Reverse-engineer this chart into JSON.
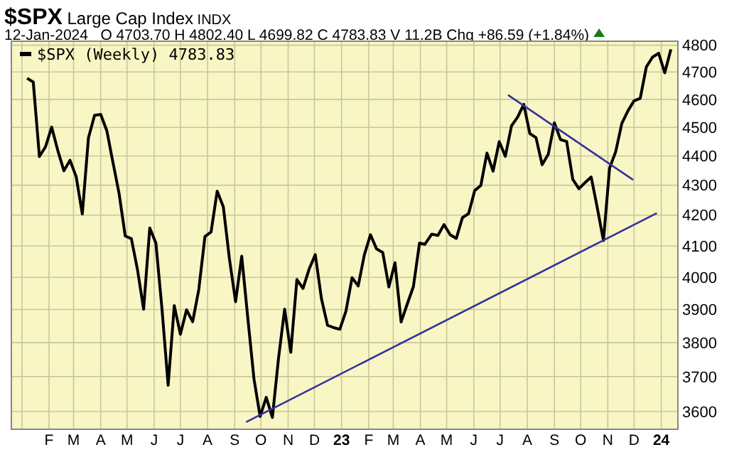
{
  "chart_data": {
    "type": "line",
    "title": "$SPX Large Cap Index INDX",
    "subtitle": "12-Jan-2024   O 4703.70 H 4802.40 L 4699.82 C 4783.83 V 11.2B Chg +86.59 (+1.84%)",
    "x": [
      "2022-01-07",
      "2022-01-14",
      "2022-01-21",
      "2022-01-28",
      "2022-02-04",
      "2022-02-11",
      "2022-02-18",
      "2022-02-25",
      "2022-03-04",
      "2022-03-11",
      "2022-03-18",
      "2022-03-25",
      "2022-04-01",
      "2022-04-08",
      "2022-04-14",
      "2022-04-22",
      "2022-04-29",
      "2022-05-06",
      "2022-05-13",
      "2022-05-20",
      "2022-05-27",
      "2022-06-03",
      "2022-06-10",
      "2022-06-17",
      "2022-06-24",
      "2022-07-01",
      "2022-07-08",
      "2022-07-15",
      "2022-07-22",
      "2022-07-29",
      "2022-08-05",
      "2022-08-12",
      "2022-08-19",
      "2022-08-26",
      "2022-09-02",
      "2022-09-09",
      "2022-09-16",
      "2022-09-23",
      "2022-09-30",
      "2022-10-07",
      "2022-10-14",
      "2022-10-21",
      "2022-10-28",
      "2022-11-04",
      "2022-11-11",
      "2022-11-18",
      "2022-11-25",
      "2022-12-02",
      "2022-12-09",
      "2022-12-16",
      "2022-12-23",
      "2022-12-30",
      "2023-01-06",
      "2023-01-13",
      "2023-01-20",
      "2023-01-27",
      "2023-02-03",
      "2023-02-10",
      "2023-02-17",
      "2023-02-24",
      "2023-03-03",
      "2023-03-10",
      "2023-03-17",
      "2023-03-24",
      "2023-03-31",
      "2023-04-06",
      "2023-04-14",
      "2023-04-21",
      "2023-04-28",
      "2023-05-05",
      "2023-05-12",
      "2023-05-19",
      "2023-05-26",
      "2023-06-02",
      "2023-06-09",
      "2023-06-16",
      "2023-06-23",
      "2023-06-30",
      "2023-07-07",
      "2023-07-14",
      "2023-07-21",
      "2023-07-28",
      "2023-08-04",
      "2023-08-11",
      "2023-08-18",
      "2023-08-25",
      "2023-09-01",
      "2023-09-08",
      "2023-09-15",
      "2023-09-22",
      "2023-09-29",
      "2023-10-06",
      "2023-10-13",
      "2023-10-20",
      "2023-10-27",
      "2023-11-03",
      "2023-11-10",
      "2023-11-17",
      "2023-11-24",
      "2023-12-01",
      "2023-12-08",
      "2023-12-15",
      "2023-12-22",
      "2023-12-29",
      "2024-01-05",
      "2024-01-12"
    ],
    "series": [
      {
        "name": "$SPX (Weekly) 4783.83",
        "color": "#000000",
        "values": [
          4677,
          4663,
          4398,
          4432,
          4501,
          4419,
          4349,
          4385,
          4329,
          4204,
          4463,
          4543,
          4546,
          4488,
          4393,
          4272,
          4132,
          4123,
          4024,
          3901,
          4158,
          4109,
          3901,
          3675,
          3912,
          3825,
          3899,
          3863,
          3962,
          4130,
          4145,
          4280,
          4228,
          4058,
          3924,
          4067,
          3873,
          3693,
          3586,
          3640,
          3583,
          3753,
          3901,
          3771,
          3993,
          3965,
          4026,
          4072,
          3934,
          3852,
          3845,
          3840,
          3895,
          3999,
          3973,
          4071,
          4136,
          4090,
          4079,
          3970,
          4046,
          3862,
          3917,
          3971,
          4109,
          4105,
          4138,
          4134,
          4169,
          4136,
          4124,
          4192,
          4205,
          4282,
          4299,
          4410,
          4348,
          4450,
          4399,
          4505,
          4536,
          4582,
          4478,
          4464,
          4370,
          4406,
          4516,
          4457,
          4450,
          4320,
          4288,
          4309,
          4328,
          4224,
          4117,
          4358,
          4415,
          4514,
          4559,
          4595,
          4604,
          4719,
          4755,
          4770,
          4697,
          4784
        ]
      },
      {
        "type": "line",
        "color": "#33339a",
        "x": [
          "2022-09-14",
          "2023-12-27"
        ],
        "values": [
          3570,
          4207
        ]
      },
      {
        "type": "line",
        "color": "#33339a",
        "x": [
          "2023-07-10",
          "2023-11-30"
        ],
        "values": [
          4616,
          4318
        ]
      }
    ],
    "xlim": [
      "2021-12-20",
      "2024-01-20"
    ],
    "xticks": [
      {
        "value": "2022-01-01",
        "label": null
      },
      {
        "value": "2022-02-01",
        "label": "F"
      },
      {
        "value": "2022-03-01",
        "label": "M"
      },
      {
        "value": "2022-04-01",
        "label": "A"
      },
      {
        "value": "2022-05-01",
        "label": "M"
      },
      {
        "value": "2022-06-01",
        "label": "J"
      },
      {
        "value": "2022-07-01",
        "label": "J"
      },
      {
        "value": "2022-08-01",
        "label": "A"
      },
      {
        "value": "2022-09-01",
        "label": "S"
      },
      {
        "value": "2022-10-01",
        "label": "O"
      },
      {
        "value": "2022-11-01",
        "label": "N"
      },
      {
        "value": "2022-12-01",
        "label": "D"
      },
      {
        "value": "2023-01-01",
        "label": "23"
      },
      {
        "value": "2023-02-01",
        "label": "F"
      },
      {
        "value": "2023-03-01",
        "label": "M"
      },
      {
        "value": "2023-04-01",
        "label": "A"
      },
      {
        "value": "2023-05-01",
        "label": "M"
      },
      {
        "value": "2023-06-01",
        "label": "J"
      },
      {
        "value": "2023-07-01",
        "label": "J"
      },
      {
        "value": "2023-08-01",
        "label": "A"
      },
      {
        "value": "2023-09-01",
        "label": "S"
      },
      {
        "value": "2023-10-01",
        "label": "O"
      },
      {
        "value": "2023-11-01",
        "label": "N"
      },
      {
        "value": "2023-12-01",
        "label": "D"
      },
      {
        "value": "2024-01-01",
        "label": "24"
      }
    ],
    "ylim": [
      3550,
      4815
    ],
    "yticks": [
      3600,
      3700,
      3800,
      3900,
      4000,
      4100,
      4200,
      4300,
      4400,
      4500,
      4600,
      4700,
      4800
    ],
    "log": true,
    "grid": true,
    "legend": "top left",
    "marker": "none",
    "line_style": "solid"
  }
}
